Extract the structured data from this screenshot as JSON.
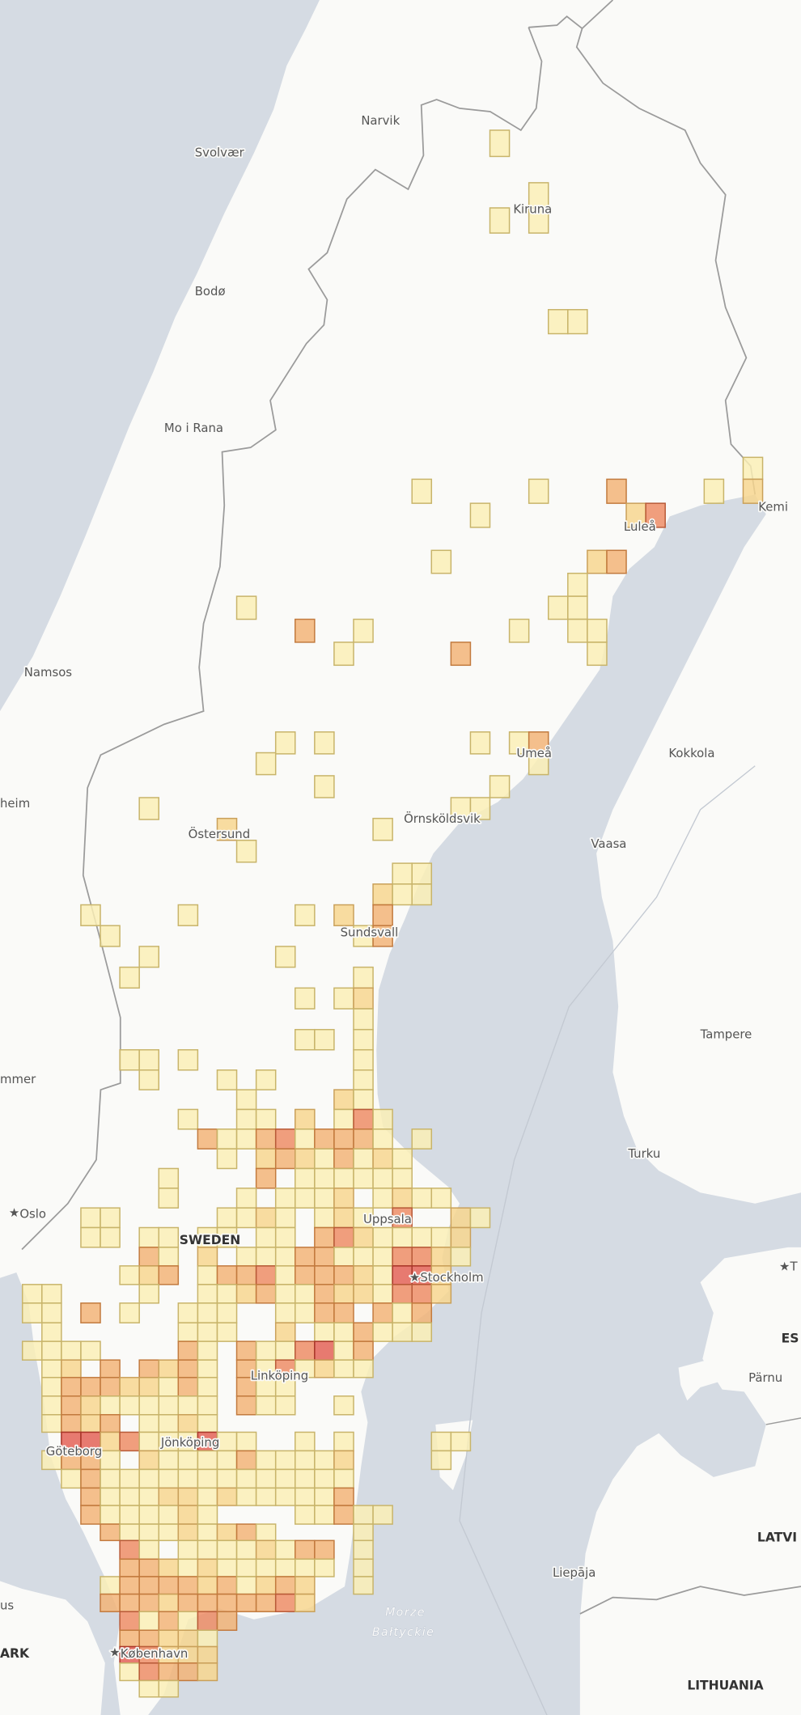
{
  "map": {
    "country_labels": {
      "sweden": "SWEDEN",
      "denmark": "ARK",
      "latvia": "LATVI",
      "lithuania": "LITHUANIA",
      "estonia": "ES"
    },
    "city_labels": {
      "narvik": "Narvik",
      "svolvaer": "Svolvær",
      "kiruna": "Kiruna",
      "bodo": "Bodø",
      "mo_i_rana": "Mo i Rana",
      "lulea": "Luleå",
      "kemi": "Kemi",
      "namsos": "Namsos",
      "trondheim": "heim",
      "ostersund": "Östersund",
      "ornskoldsvik": "Örnsköldsvik",
      "umea": "Umeå",
      "kokkola": "Kokkola",
      "vaasa": "Vaasa",
      "sundsvall": "Sundsvall",
      "tampere": "Tampere",
      "lillehammer": "mmer",
      "turku": "Turku",
      "oslo": "Oslo",
      "uppsala": "Uppsala",
      "stockholm": "Stockholm",
      "tallinn": "T",
      "linkoping": "Linköping",
      "parnu": "Pärnu",
      "goteborg": "Göteborg",
      "jonkoping": "Jönköping",
      "liepaja": "Liepāja",
      "kobenhavn": "København",
      "partial_west": "us"
    },
    "sea_labels": {
      "baltic_line1": "Morze",
      "baltic_line2": "Bałtyckie"
    },
    "capital_marker_icon": "star-icon",
    "colors": {
      "sea": "#d5dbe3",
      "land": "#fafaf8",
      "border": "#9b9b9b",
      "level_1": "#fbefb5",
      "level_2": "#f8d68c",
      "level_3": "#f3b274",
      "level_4": "#ee8a62",
      "level_5": "#e35e52"
    }
  }
}
